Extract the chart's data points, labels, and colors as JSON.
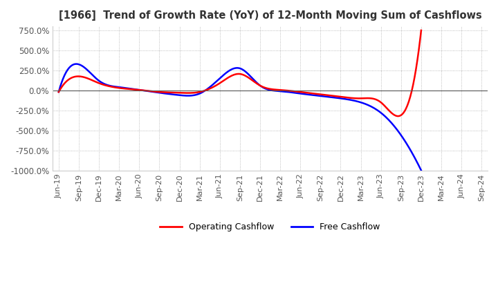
{
  "title": "[1966]  Trend of Growth Rate (YoY) of 12-Month Moving Sum of Cashflows",
  "ylim": [
    -1000,
    800
  ],
  "yticks": [
    750,
    500,
    250,
    0,
    -250,
    -500,
    -750,
    -1000
  ],
  "ytick_labels": [
    "750.0%",
    "500.0%",
    "250.0%",
    "0.0%",
    "-250.0%",
    "-500.0%",
    "-750.0%",
    "-1000.0%"
  ],
  "background_color": "#ffffff",
  "grid_color": "#aaaaaa",
  "operating_color": "#ff0000",
  "free_color": "#0000ff",
  "x_labels": [
    "Jun-19",
    "Sep-19",
    "Dec-19",
    "Mar-20",
    "Jun-20",
    "Sep-20",
    "Dec-20",
    "Mar-21",
    "Jun-21",
    "Sep-21",
    "Dec-21",
    "Mar-22",
    "Jun-22",
    "Sep-22",
    "Dec-22",
    "Mar-23",
    "Jun-23",
    "Sep-23",
    "Dec-23",
    "Mar-24",
    "Jun-24",
    "Sep-24"
  ],
  "operating_cashflow": [
    -20,
    175,
    90,
    30,
    5,
    -20,
    -30,
    -20,
    90,
    205,
    60,
    5,
    -20,
    -50,
    -80,
    -100,
    -150,
    -310,
    750,
    null,
    null,
    null
  ],
  "free_cashflow": [
    -20,
    325,
    120,
    40,
    5,
    -30,
    -60,
    -40,
    150,
    275,
    60,
    -10,
    -40,
    -70,
    -100,
    -150,
    -280,
    -560,
    -1000,
    null,
    null,
    null
  ]
}
